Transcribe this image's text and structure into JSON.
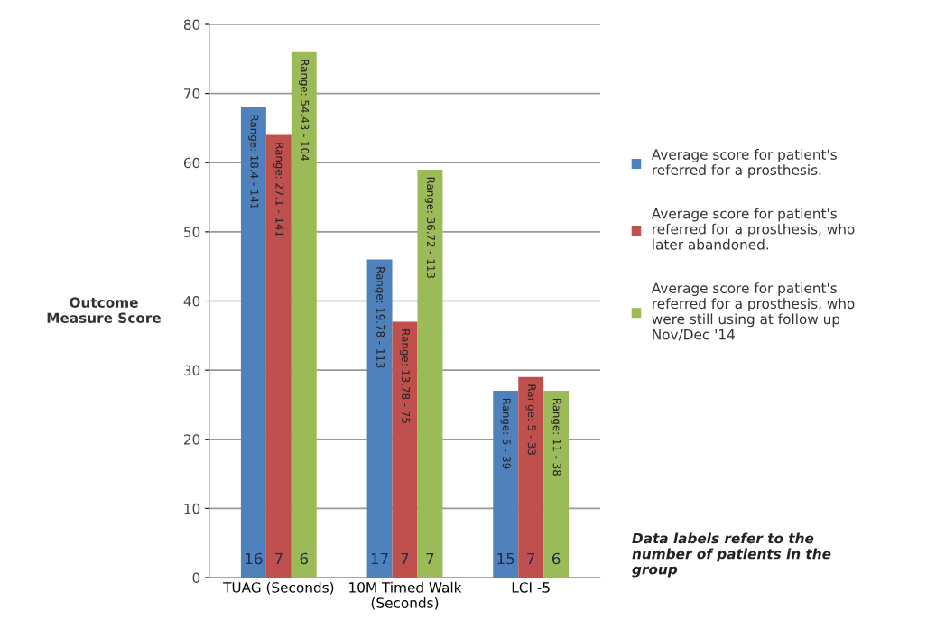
{
  "chart_data": {
    "type": "bar",
    "ylabel": "Outcome\nMeasure Score",
    "categories": [
      "TUAG (Seconds)",
      "10M Timed Walk\n(Seconds)",
      "LCI -5"
    ],
    "series": [
      {
        "name": "Average score for patient's\nreferred for a prosthesis.",
        "color": "#4f81bd",
        "values": [
          68,
          46,
          27
        ]
      },
      {
        "name": "Average score for patient's\nreferred for a prosthesis, who\nlater abandoned.",
        "color": "#c0504d",
        "values": [
          64,
          37,
          29
        ]
      },
      {
        "name": "Average score for patient's\nreferred for a prosthesis, who\nwere still using at follow up\nNov/Dec '14",
        "color": "#9bbb59",
        "values": [
          76,
          59,
          27
        ]
      }
    ],
    "ylim": [
      0,
      80
    ],
    "yticks": [
      0,
      10,
      20,
      30,
      40,
      50,
      60,
      70,
      80
    ],
    "grid": "y",
    "legend": "right",
    "annotations": [
      "Range: 18.4 - 141",
      "Range: 27.1 - 141",
      "Range: 54.43 - 104",
      "Range: 19.78 - 113",
      "Range: 13.78 - 75",
      "Range: 36.72 - 113",
      "Range: 5 - 39",
      "Range: 5 - 33",
      "Range: 11 - 38",
      "16",
      "7",
      "6",
      "17",
      "7",
      "7",
      "15",
      "7",
      "6",
      "Data labels refer to the\nnumber of patients in the\ngroup"
    ]
  }
}
